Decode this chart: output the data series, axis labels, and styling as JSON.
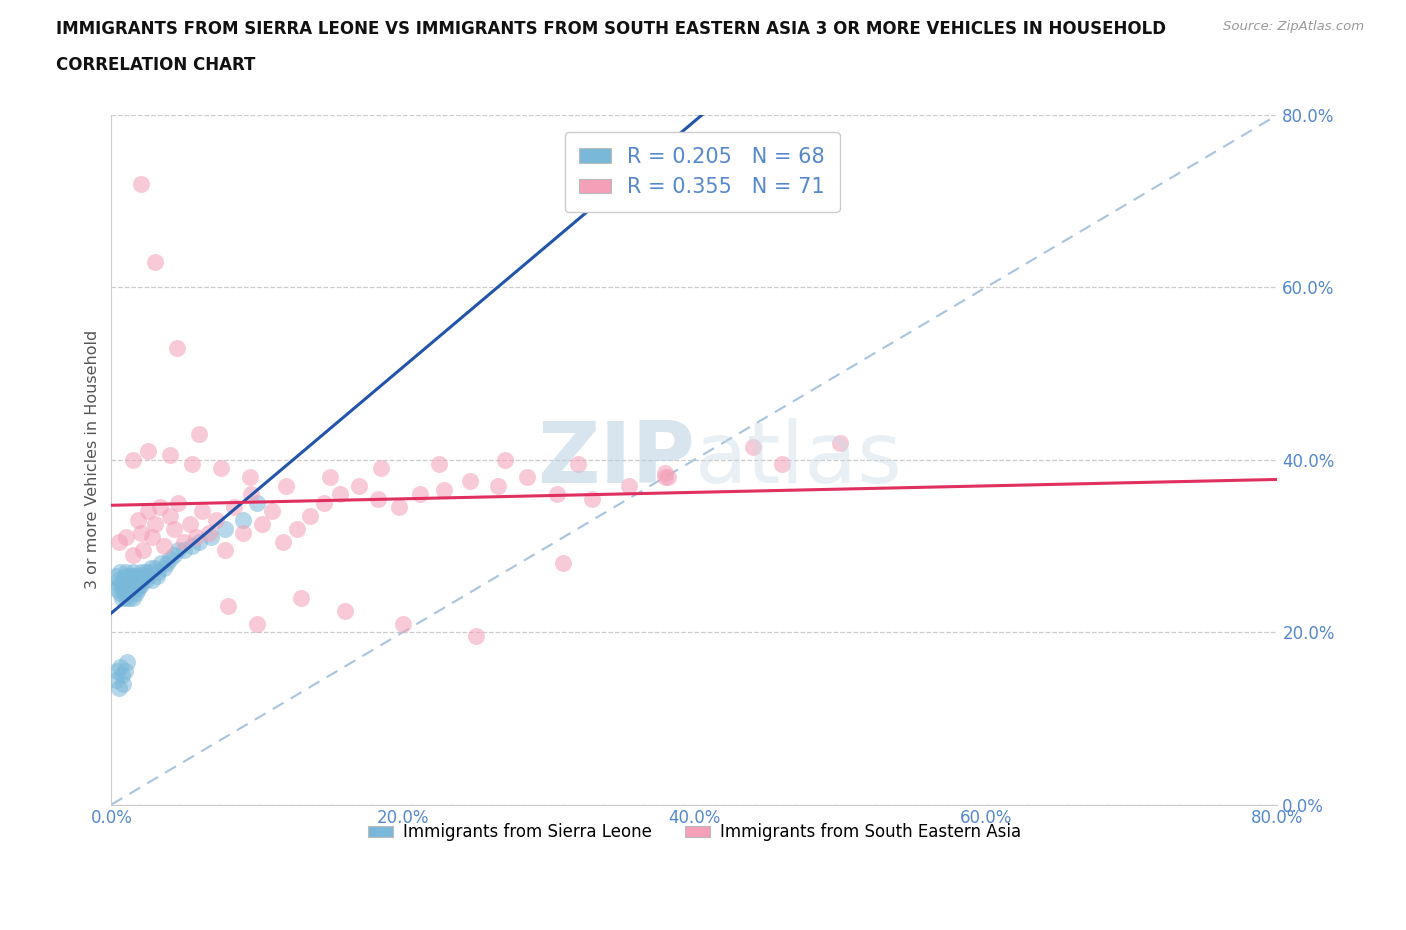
{
  "title_line1": "IMMIGRANTS FROM SIERRA LEONE VS IMMIGRANTS FROM SOUTH EASTERN ASIA 3 OR MORE VEHICLES IN HOUSEHOLD",
  "title_line2": "CORRELATION CHART",
  "source_text": "Source: ZipAtlas.com",
  "ylabel": "3 or more Vehicles in Household",
  "xlim": [
    0.0,
    0.8
  ],
  "ylim": [
    0.0,
    0.8
  ],
  "xticks": [
    0.0,
    0.2,
    0.4,
    0.6,
    0.8
  ],
  "yticks": [
    0.0,
    0.2,
    0.4,
    0.6,
    0.8
  ],
  "xtick_labels": [
    "0.0%",
    "20.0%",
    "40.0%",
    "60.0%",
    "80.0%"
  ],
  "ytick_labels": [
    "0.0%",
    "20.0%",
    "40.0%",
    "60.0%",
    "80.0%"
  ],
  "legend_label1": "Immigrants from Sierra Leone",
  "legend_label2": "Immigrants from South Eastern Asia",
  "R1": 0.205,
  "N1": 68,
  "R2": 0.355,
  "N2": 71,
  "color1": "#7ab8d9",
  "color2": "#f4a0b8",
  "trendline1_color": "#2255aa",
  "trendline2_color": "#e03060",
  "diag_line_color": "#a8c4de",
  "watermark_zip": "ZIP",
  "watermark_atlas": "atlas",
  "title_fontsize": 12,
  "subtitle_fontsize": 12,
  "background_color": "#ffffff",
  "tick_color": "#5588cc",
  "sierra_leone_x": [
    0.003,
    0.004,
    0.005,
    0.005,
    0.006,
    0.006,
    0.007,
    0.007,
    0.008,
    0.008,
    0.009,
    0.009,
    0.01,
    0.01,
    0.01,
    0.011,
    0.011,
    0.012,
    0.012,
    0.013,
    0.013,
    0.014,
    0.014,
    0.015,
    0.015,
    0.015,
    0.016,
    0.016,
    0.017,
    0.017,
    0.018,
    0.018,
    0.019,
    0.019,
    0.02,
    0.02,
    0.021,
    0.022,
    0.023,
    0.024,
    0.025,
    0.026,
    0.027,
    0.028,
    0.03,
    0.031,
    0.032,
    0.034,
    0.036,
    0.038,
    0.04,
    0.043,
    0.046,
    0.05,
    0.055,
    0.06,
    0.068,
    0.078,
    0.09,
    0.1,
    0.003,
    0.004,
    0.005,
    0.006,
    0.007,
    0.008,
    0.009,
    0.011
  ],
  "sierra_leone_y": [
    0.265,
    0.25,
    0.255,
    0.26,
    0.245,
    0.27,
    0.255,
    0.24,
    0.26,
    0.25,
    0.265,
    0.245,
    0.27,
    0.255,
    0.24,
    0.26,
    0.25,
    0.265,
    0.24,
    0.26,
    0.25,
    0.265,
    0.255,
    0.27,
    0.255,
    0.24,
    0.265,
    0.25,
    0.26,
    0.245,
    0.265,
    0.25,
    0.26,
    0.255,
    0.27,
    0.255,
    0.26,
    0.265,
    0.27,
    0.26,
    0.265,
    0.27,
    0.275,
    0.26,
    0.275,
    0.265,
    0.27,
    0.28,
    0.275,
    0.28,
    0.285,
    0.29,
    0.295,
    0.295,
    0.3,
    0.305,
    0.31,
    0.32,
    0.33,
    0.35,
    0.145,
    0.155,
    0.135,
    0.16,
    0.15,
    0.14,
    0.155,
    0.165
  ],
  "sea_x": [
    0.005,
    0.01,
    0.015,
    0.018,
    0.02,
    0.022,
    0.025,
    0.028,
    0.03,
    0.033,
    0.036,
    0.04,
    0.043,
    0.046,
    0.05,
    0.054,
    0.058,
    0.062,
    0.067,
    0.072,
    0.078,
    0.084,
    0.09,
    0.096,
    0.103,
    0.11,
    0.118,
    0.127,
    0.136,
    0.146,
    0.157,
    0.17,
    0.183,
    0.197,
    0.212,
    0.228,
    0.246,
    0.265,
    0.285,
    0.306,
    0.33,
    0.355,
    0.382,
    0.02,
    0.03,
    0.045,
    0.06,
    0.08,
    0.1,
    0.13,
    0.16,
    0.2,
    0.25,
    0.31,
    0.38,
    0.46,
    0.015,
    0.025,
    0.04,
    0.055,
    0.075,
    0.095,
    0.12,
    0.15,
    0.185,
    0.225,
    0.27,
    0.32,
    0.38,
    0.44,
    0.5
  ],
  "sea_y": [
    0.305,
    0.31,
    0.29,
    0.33,
    0.315,
    0.295,
    0.34,
    0.31,
    0.325,
    0.345,
    0.3,
    0.335,
    0.32,
    0.35,
    0.305,
    0.325,
    0.31,
    0.34,
    0.315,
    0.33,
    0.295,
    0.345,
    0.315,
    0.36,
    0.325,
    0.34,
    0.305,
    0.32,
    0.335,
    0.35,
    0.36,
    0.37,
    0.355,
    0.345,
    0.36,
    0.365,
    0.375,
    0.37,
    0.38,
    0.36,
    0.355,
    0.37,
    0.38,
    0.72,
    0.63,
    0.53,
    0.43,
    0.23,
    0.21,
    0.24,
    0.225,
    0.21,
    0.195,
    0.28,
    0.385,
    0.395,
    0.4,
    0.41,
    0.405,
    0.395,
    0.39,
    0.38,
    0.37,
    0.38,
    0.39,
    0.395,
    0.4,
    0.395,
    0.38,
    0.415,
    0.42
  ]
}
